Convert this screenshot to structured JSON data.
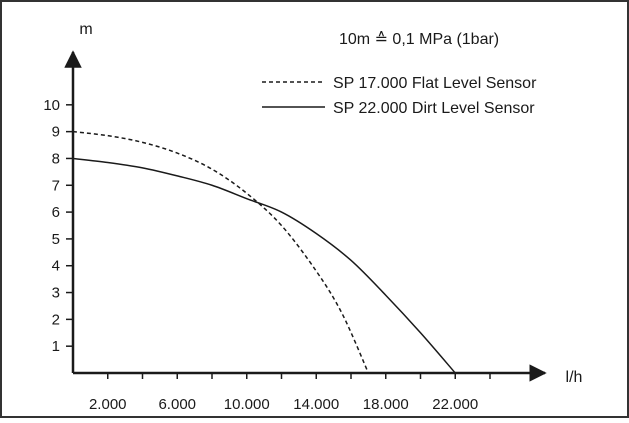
{
  "colors": {
    "background": "#ffffff",
    "frame": "#333333",
    "ink": "#1a1a1a"
  },
  "chart_data": {
    "type": "line",
    "title": "",
    "ylabel": "m",
    "xlabel": "l/h",
    "annotation": "10m ≙ 0,1 MPa (1bar)",
    "xlim": [
      0,
      24000
    ],
    "ylim": [
      0,
      11
    ],
    "x_ticks": [
      2000,
      4000,
      6000,
      8000,
      10000,
      12000,
      14000,
      16000,
      18000,
      20000,
      22000,
      24000
    ],
    "x_tick_labels": [
      {
        "value": 2000,
        "label": "2.000"
      },
      {
        "value": 6000,
        "label": "6.000"
      },
      {
        "value": 10000,
        "label": "10.000"
      },
      {
        "value": 14000,
        "label": "14.000"
      },
      {
        "value": 18000,
        "label": "18.000"
      },
      {
        "value": 22000,
        "label": "22.000"
      }
    ],
    "y_ticks": [
      1,
      2,
      3,
      4,
      5,
      6,
      7,
      8,
      9,
      10
    ],
    "y_tick_labels": [
      "1",
      "2",
      "3",
      "4",
      "5",
      "6",
      "7",
      "8",
      "9",
      "10"
    ],
    "grid": false,
    "legend": "top-right",
    "series": [
      {
        "name": "SP 17.000 Flat Level Sensor",
        "style": "dashed",
        "points": [
          [
            0,
            9.0
          ],
          [
            2000,
            8.85
          ],
          [
            4000,
            8.6
          ],
          [
            6000,
            8.2
          ],
          [
            8000,
            7.6
          ],
          [
            10000,
            6.7
          ],
          [
            12000,
            5.5
          ],
          [
            14000,
            3.8
          ],
          [
            15500,
            2.2
          ],
          [
            17000,
            0
          ]
        ]
      },
      {
        "name": "SP 22.000 Dirt Level Sensor",
        "style": "solid",
        "points": [
          [
            0,
            8.0
          ],
          [
            2000,
            7.85
          ],
          [
            4000,
            7.65
          ],
          [
            6000,
            7.35
          ],
          [
            8000,
            7.0
          ],
          [
            10000,
            6.5
          ],
          [
            12000,
            6.0
          ],
          [
            14000,
            5.2
          ],
          [
            16000,
            4.2
          ],
          [
            18000,
            2.9
          ],
          [
            20000,
            1.5
          ],
          [
            22000,
            0
          ]
        ]
      }
    ]
  }
}
